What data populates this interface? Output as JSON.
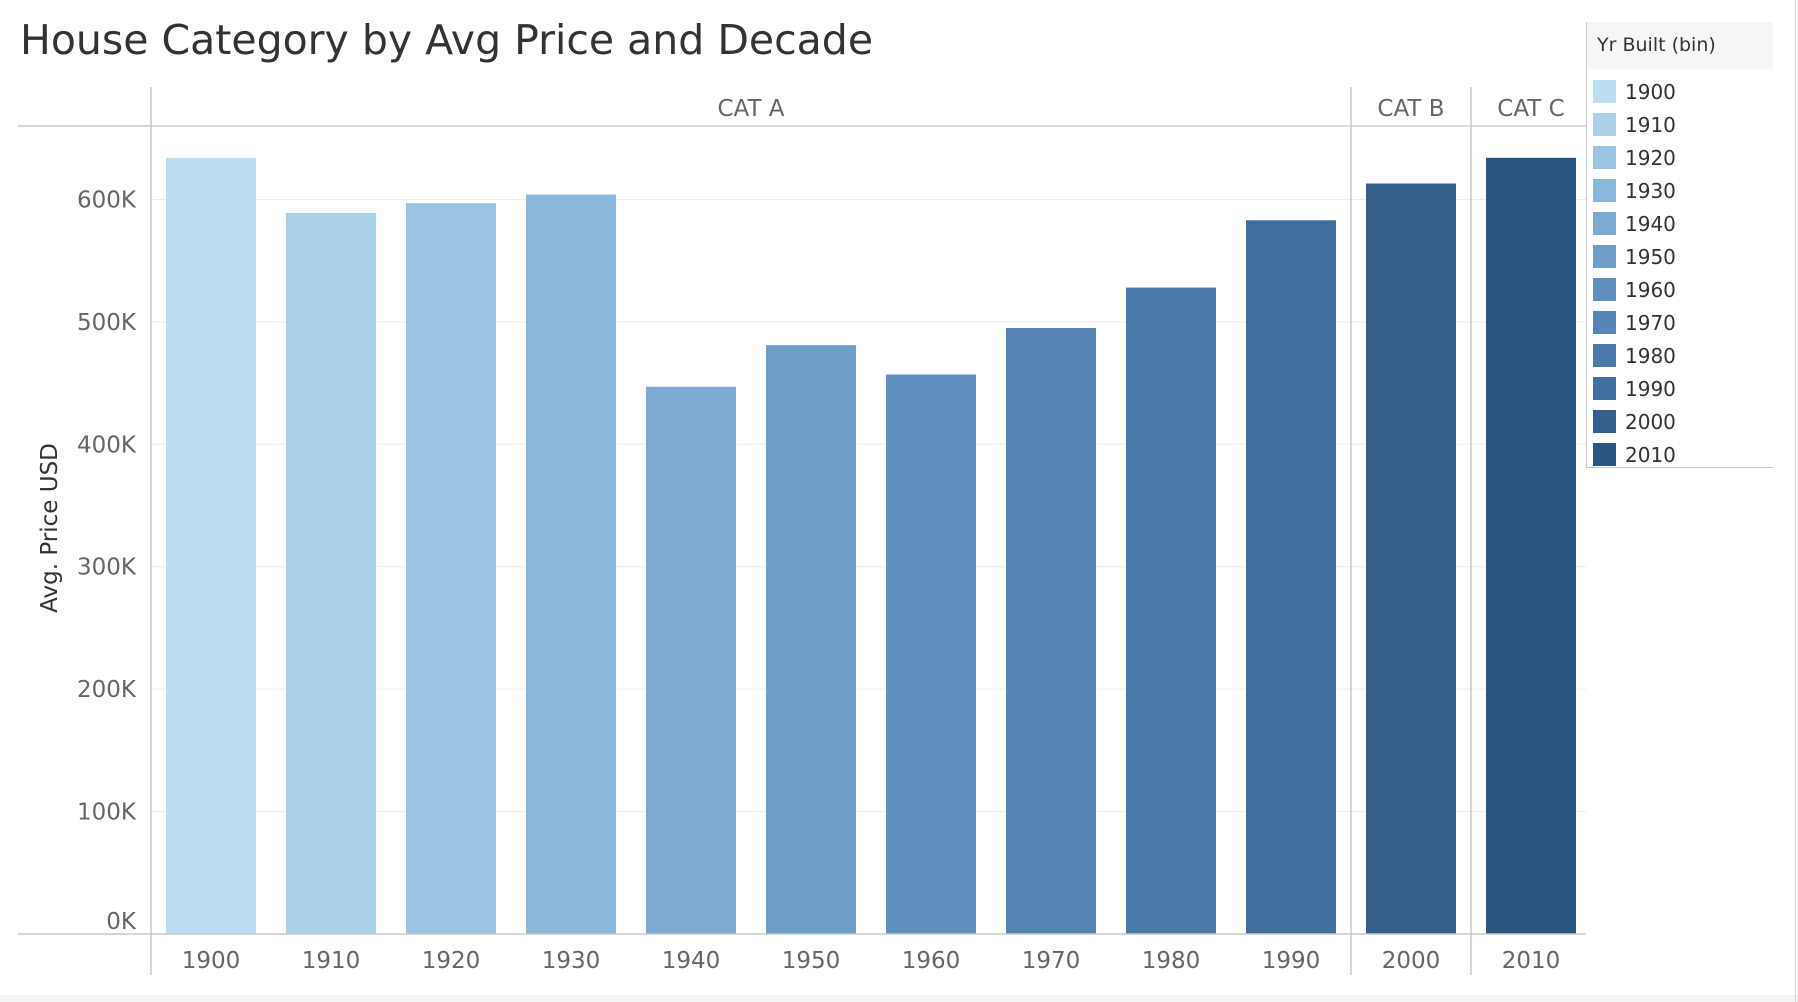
{
  "title": "House Category by Avg Price and Decade",
  "chart_data": {
    "type": "bar",
    "title": "House Category by Avg Price and Decade",
    "ylabel": "Avg. Price USD",
    "xlabel": "",
    "ylim": [
      0,
      660000
    ],
    "yticks": [
      0,
      100000,
      200000,
      300000,
      400000,
      500000,
      600000
    ],
    "ytick_labels": [
      "0K",
      "100K",
      "200K",
      "300K",
      "400K",
      "500K",
      "600K"
    ],
    "grid": true,
    "panels": [
      {
        "label": "CAT A",
        "categories": [
          "1900",
          "1910",
          "1920",
          "1930",
          "1940",
          "1950",
          "1960",
          "1970",
          "1980",
          "1990"
        ]
      },
      {
        "label": "CAT B",
        "categories": [
          "2000"
        ]
      },
      {
        "label": "CAT C",
        "categories": [
          "2010"
        ]
      }
    ],
    "categories": [
      "1900",
      "1910",
      "1920",
      "1930",
      "1940",
      "1950",
      "1960",
      "1970",
      "1980",
      "1990",
      "2000",
      "2010"
    ],
    "values": [
      634000,
      589000,
      597000,
      604000,
      447000,
      481000,
      457000,
      495000,
      528000,
      583000,
      613000,
      634000
    ]
  },
  "legend": {
    "title": "Yr Built (bin)",
    "items": [
      {
        "label": "1900",
        "color": "#bcdef2"
      },
      {
        "label": "1910",
        "color": "#abd0ea"
      },
      {
        "label": "1920",
        "color": "#9bc4e2"
      },
      {
        "label": "1930",
        "color": "#8bb8da"
      },
      {
        "label": "1940",
        "color": "#7eaad1"
      },
      {
        "label": "1950",
        "color": "#6e9fc8"
      },
      {
        "label": "1960",
        "color": "#6190be"
      },
      {
        "label": "1970",
        "color": "#5585b4"
      },
      {
        "label": "1980",
        "color": "#4a79aa"
      },
      {
        "label": "1990",
        "color": "#416e9e"
      },
      {
        "label": "2000",
        "color": "#35608e"
      },
      {
        "label": "2010",
        "color": "#2b5682"
      }
    ]
  }
}
